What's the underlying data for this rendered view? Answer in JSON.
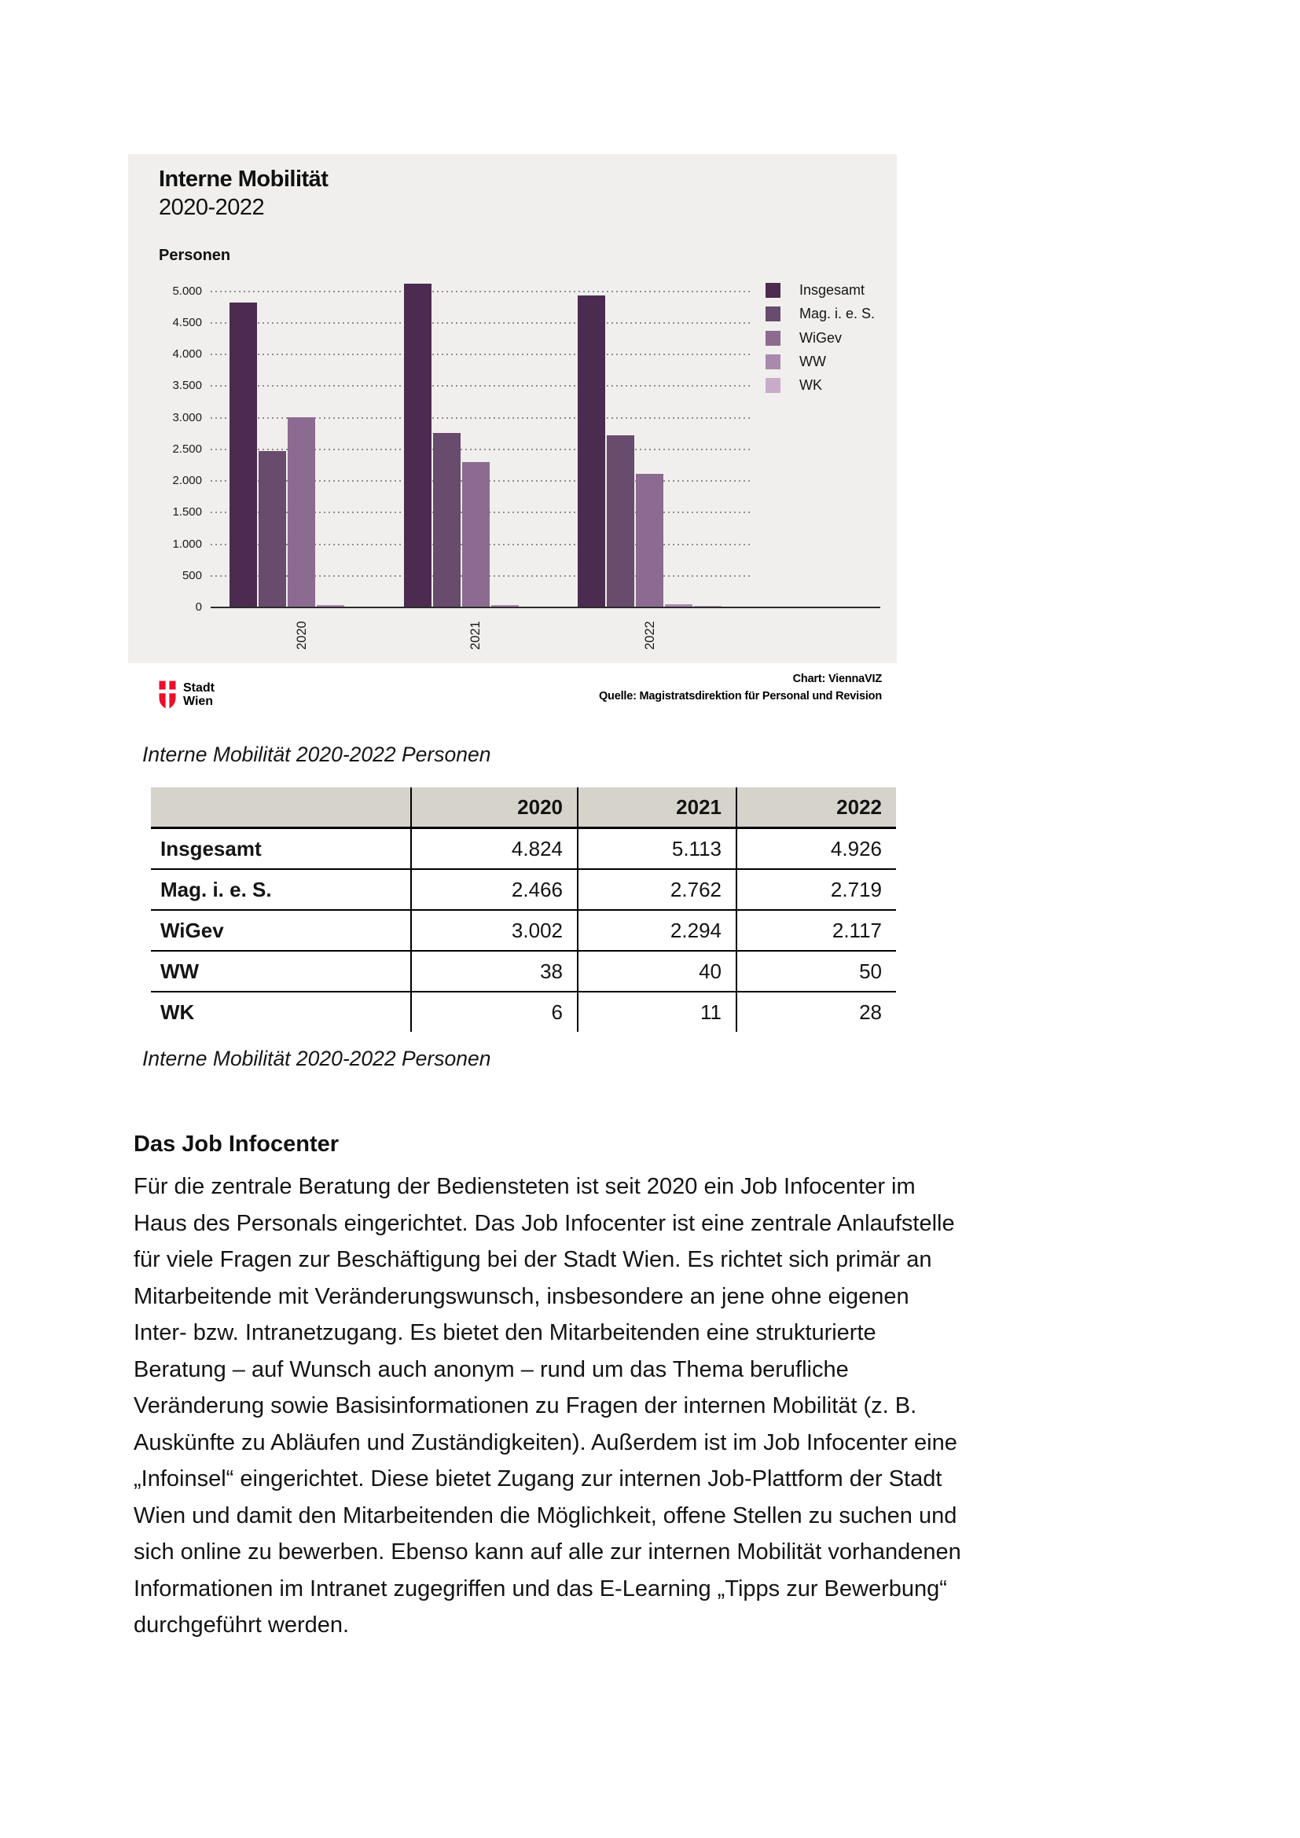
{
  "chart": {
    "title": "Interne Mobilität",
    "subtitle": "2020-2022",
    "y_unit_label": "Personen",
    "footer_credit": "Chart: ViennaVIZ",
    "footer_source": "Quelle: Magistratsdirektion für Personal und Revision",
    "logo_line1": "Stadt",
    "logo_line2": "Wien",
    "logo_color": "#e8112d",
    "panel_background": "#f0efed"
  },
  "chart_data": {
    "type": "bar",
    "title": "Interne Mobilität 2020-2022",
    "ylabel": "Personen",
    "ylim": [
      0,
      5000
    ],
    "grid": true,
    "legend_position": "right",
    "categories": [
      "2020",
      "2021",
      "2022"
    ],
    "y_tick_labels": [
      "5.000",
      "4.500",
      "4.000",
      "3.500",
      "3.000",
      "2.500",
      "2.000",
      "1.500",
      "1.000",
      "500",
      "0"
    ],
    "series": [
      {
        "name": "Insgesamt",
        "color": "#4b2b4f",
        "values": [
          4824,
          5113,
          4926
        ]
      },
      {
        "name": "Mag. i. e. S.",
        "color": "#684b6d",
        "values": [
          2466,
          2762,
          2719
        ]
      },
      {
        "name": "WiGev",
        "color": "#8c6b90",
        "values": [
          3002,
          2294,
          2117
        ]
      },
      {
        "name": "WW",
        "color": "#a98aad",
        "values": [
          38,
          40,
          50
        ]
      },
      {
        "name": "WK",
        "color": "#c7abc9",
        "values": [
          6,
          11,
          28
        ]
      }
    ]
  },
  "captions": {
    "above_table": "Interne Mobilität 2020-2022 Personen",
    "below_table": "Interne Mobilität 2020-2022 Personen"
  },
  "table": {
    "year_columns": [
      "2020",
      "2021",
      "2022"
    ],
    "rows": [
      {
        "label": "Insgesamt",
        "values": [
          "4.824",
          "5.113",
          "4.926"
        ]
      },
      {
        "label": "Mag. i. e. S.",
        "values": [
          "2.466",
          "2.762",
          "2.719"
        ]
      },
      {
        "label": "WiGev",
        "values": [
          "3.002",
          "2.294",
          "2.117"
        ]
      },
      {
        "label": "WW",
        "values": [
          "38",
          "40",
          "50"
        ]
      },
      {
        "label": "WK",
        "values": [
          "6",
          "11",
          "28"
        ]
      }
    ]
  },
  "section": {
    "heading": "Das Job Infocenter",
    "lines": [
      "Für die zentrale Beratung der Bediensteten ist seit 2020 ein Job Infocenter im",
      "Haus des Personals eingerichtet. Das Job Infocenter ist eine zentrale Anlaufstelle",
      "für viele Fragen zur Beschäftigung bei der Stadt Wien. Es richtet sich primär an",
      "Mitarbeitende mit Veränderungswunsch, insbesondere an jene ohne eigenen",
      "Inter- bzw. Intranetzugang. Es bietet den Mitarbeitenden eine strukturierte",
      "Beratung – auf Wunsch auch anonym – rund um das Thema berufliche",
      "Veränderung sowie Basisinformationen zu Fragen der internen Mobilität (z. B.",
      "Auskünfte zu Abläufen und Zuständigkeiten). Außerdem ist im Job Infocenter eine",
      "„Infoinsel“ eingerichtet. Diese bietet Zugang zur internen Job-Plattform der Stadt",
      "Wien und damit den Mitarbeitenden die Möglichkeit, offene Stellen zu suchen und",
      "sich online zu bewerben. Ebenso kann auf alle zur internen Mobilität vorhandenen",
      "Informationen im Intranet zugegriffen und das E-Learning „Tipps zur Bewerbung“",
      "durchgeführt werden."
    ]
  }
}
